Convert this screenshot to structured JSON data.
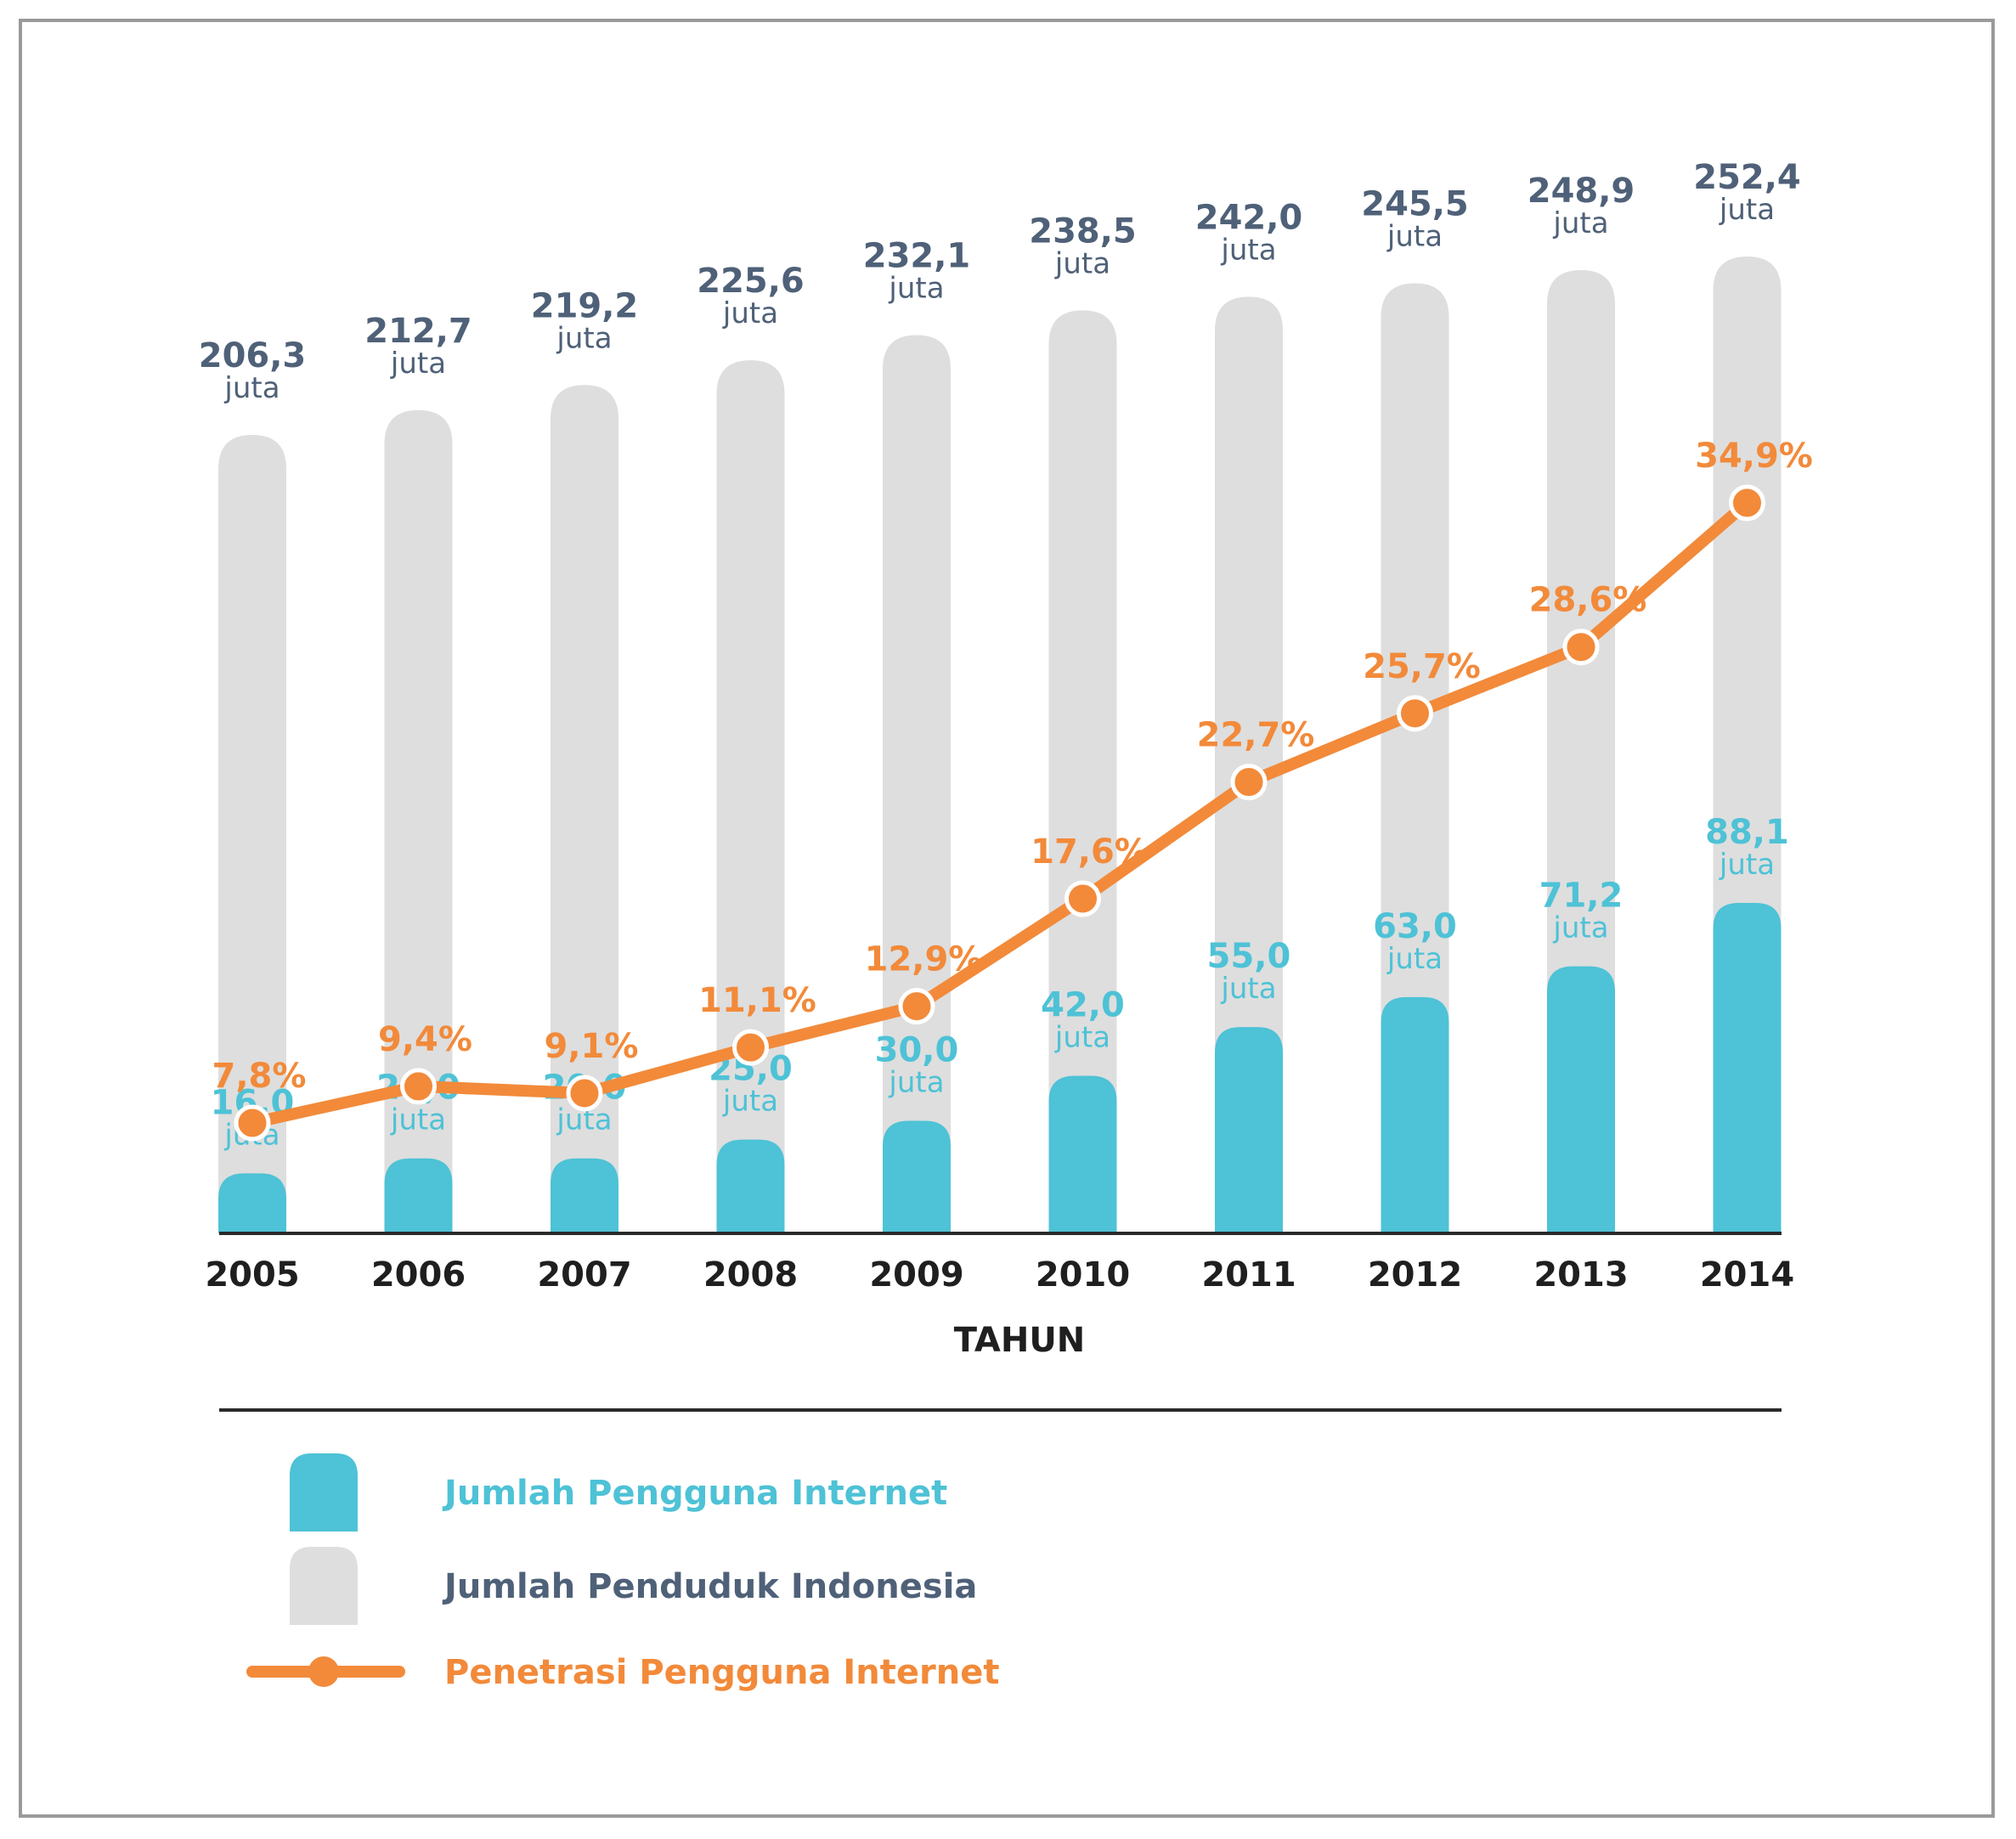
{
  "chart_data": {
    "type": "bar",
    "categories": [
      "2005",
      "2006",
      "2007",
      "2008",
      "2009",
      "2010",
      "2011",
      "2012",
      "2013",
      "2014"
    ],
    "xlabel": "TAHUN",
    "unit_label": "juta",
    "series": [
      {
        "name": "Jumlah Pengguna Internet",
        "type": "bar",
        "values": [
          16.0,
          20.0,
          20.0,
          25.0,
          30.0,
          42.0,
          55.0,
          63.0,
          71.2,
          88.1
        ],
        "labels": [
          "16,0",
          "20,0",
          "20,0",
          "25,0",
          "30,0",
          "42,0",
          "55,0",
          "63,0",
          "71,2",
          "88,1"
        ],
        "color": "#4ec2d6"
      },
      {
        "name": "Jumlah Penduduk Indonesia",
        "type": "bar",
        "values": [
          206.3,
          212.7,
          219.2,
          225.6,
          232.1,
          238.5,
          242.0,
          245.5,
          248.9,
          252.4
        ],
        "labels": [
          "206,3",
          "212,7",
          "219,2",
          "225,6",
          "232,1",
          "238,5",
          "242,0",
          "245,5",
          "248,9",
          "252,4"
        ],
        "color": "#dedede",
        "label_color": "#4f6178"
      },
      {
        "name": "Penetrasi Pengguna Internet",
        "type": "line",
        "values": [
          7.8,
          9.4,
          9.1,
          11.1,
          12.9,
          17.6,
          22.7,
          25.7,
          28.6,
          34.9
        ],
        "labels": [
          "7,8%",
          "9,4%",
          "9,1%",
          "11,1%",
          "12,9%",
          "17,6%",
          "22,7%",
          "25,7%",
          "28,6%",
          "34,9%"
        ],
        "color": "#f28a3a"
      }
    ],
    "legend": {
      "position": "bottom-left",
      "items": [
        {
          "label": "Jumlah Pengguna Internet",
          "marker": "bar",
          "color": "#4ec2d6"
        },
        {
          "label": "Jumlah Penduduk Indonesia",
          "marker": "bar",
          "color": "#dedede"
        },
        {
          "label": "Penetrasi Pengguna Internet",
          "marker": "line-dot",
          "color": "#f28a3a"
        }
      ]
    },
    "grid": false
  }
}
